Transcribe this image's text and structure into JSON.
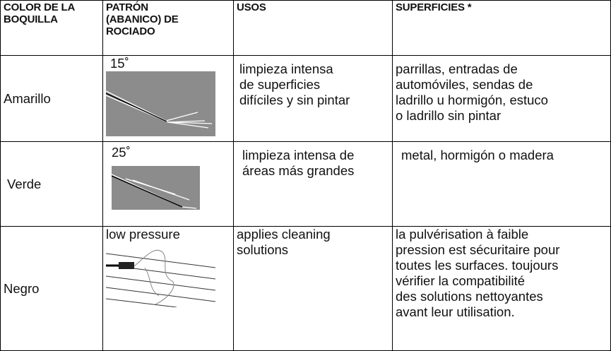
{
  "table": {
    "headers": [
      [
        "COLOR DE LA",
        "BOQUILLA"
      ],
      [
        "PATRÓN",
        "(ABANICO) DE",
        "ROCIADO"
      ],
      [
        "USOS"
      ],
      [
        "SUPERFICIES *"
      ]
    ],
    "rows": [
      [
        [
          "Amarillo"
        ],
        [
          "15˚"
        ],
        [
          "limpieza intensa",
          "de superficies",
          "difíciles y sin pintar"
        ],
        [
          "parrillas, entradas de",
          "automóviles, sendas de",
          "ladrillo u hormigón, estuco",
          "o ladrillo sin pintar"
        ]
      ],
      [
        [
          "Verde"
        ],
        [
          "25˚"
        ],
        [
          "limpieza intensa de",
          "áreas más grandes"
        ],
        [
          "metal, hormigón o madera"
        ]
      ],
      [
        [
          "Negro"
        ],
        [
          "low pressure"
        ],
        [
          "applies cleaning",
          "solutions"
        ],
        [
          "la pulvérisation à faible",
          "pression est sécuritaire pour",
          "toutes les surfaces. toujours",
          "vérifier la compatibilité",
          "des solutions nettoyantes",
          "avant leur utilisation."
        ]
      ]
    ]
  }
}
